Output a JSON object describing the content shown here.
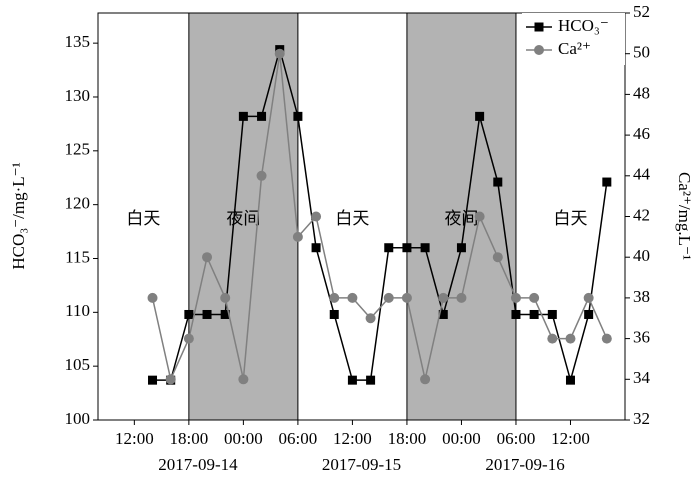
{
  "chart_data": {
    "type": "line",
    "xlim": [
      "2017-09-14T08:00",
      "2017-09-16T18:00"
    ],
    "xticks": [
      {
        "value": "2017-09-14T12:00",
        "label": "12:00"
      },
      {
        "value": "2017-09-14T18:00",
        "label": "18:00"
      },
      {
        "value": "2017-09-15T00:00",
        "label": "00:00"
      },
      {
        "value": "2017-09-15T06:00",
        "label": "06:00"
      },
      {
        "value": "2017-09-15T12:00",
        "label": "12:00"
      },
      {
        "value": "2017-09-15T18:00",
        "label": "18:00"
      },
      {
        "value": "2017-09-16T00:00",
        "label": "00:00"
      },
      {
        "value": "2017-09-16T06:00",
        "label": "06:00"
      },
      {
        "value": "2017-09-16T12:00",
        "label": "12:00"
      }
    ],
    "xdate_labels": [
      {
        "value": "2017-09-14T19:00",
        "label": "2017-09-14"
      },
      {
        "value": "2017-09-15T13:00",
        "label": "2017-09-15"
      },
      {
        "value": "2017-09-16T07:00",
        "label": "2017-09-16"
      }
    ],
    "ylabel": "HCO₃⁻/mg·L⁻¹",
    "y2label": "Ca²⁺/mg.L⁻¹",
    "ylim": [
      100,
      137.8
    ],
    "yticks": [
      100,
      105,
      110,
      115,
      120,
      125,
      130,
      135
    ],
    "y2lim": [
      32,
      52
    ],
    "y2ticks": [
      32,
      34,
      36,
      38,
      40,
      42,
      44,
      46,
      48,
      50,
      52
    ],
    "periods": [
      {
        "start": "2017-09-14T08:00",
        "end": "2017-09-14T18:00",
        "label": "白天",
        "shaded": false
      },
      {
        "start": "2017-09-14T18:00",
        "end": "2017-09-15T06:00",
        "label": "夜间",
        "shaded": true
      },
      {
        "start": "2017-09-15T06:00",
        "end": "2017-09-15T18:00",
        "label": "白天",
        "shaded": false
      },
      {
        "start": "2017-09-15T18:00",
        "end": "2017-09-16T06:00",
        "label": "夜间",
        "shaded": true
      },
      {
        "start": "2017-09-16T06:00",
        "end": "2017-09-16T18:00",
        "label": "白天",
        "shaded": false
      }
    ],
    "shade_color": "#b3b3b3",
    "legend": "upper right",
    "x": [
      "2017-09-14T14:00",
      "2017-09-14T16:00",
      "2017-09-14T18:00",
      "2017-09-14T20:00",
      "2017-09-14T22:00",
      "2017-09-15T00:00",
      "2017-09-15T02:00",
      "2017-09-15T04:00",
      "2017-09-15T06:00",
      "2017-09-15T08:00",
      "2017-09-15T10:00",
      "2017-09-15T12:00",
      "2017-09-15T14:00",
      "2017-09-15T16:00",
      "2017-09-15T18:00",
      "2017-09-15T20:00",
      "2017-09-15T22:00",
      "2017-09-16T00:00",
      "2017-09-16T02:00",
      "2017-09-16T04:00",
      "2017-09-16T06:00",
      "2017-09-16T08:00",
      "2017-09-16T10:00",
      "2017-09-16T12:00",
      "2017-09-16T14:00",
      "2017-09-16T16:00"
    ],
    "series": [
      {
        "name": "HCO₃⁻",
        "color": "#000000",
        "marker": "square",
        "values": [
          103.7,
          103.7,
          109.8,
          109.8,
          109.8,
          128.2,
          128.2,
          134.4,
          128.2,
          116,
          109.8,
          103.7,
          103.7,
          116,
          116,
          116,
          109.8,
          116,
          128.2,
          122.1,
          109.8,
          109.8,
          109.8,
          103.7,
          109.8,
          122.1
        ]
      },
      {
        "name": "Ca²⁺",
        "color": "#808080",
        "marker": "circle",
        "axis": "y2",
        "values": [
          38,
          34,
          36,
          40,
          38,
          34,
          44,
          50,
          41,
          42,
          38,
          38,
          37,
          38,
          38,
          34,
          38,
          38,
          42,
          40,
          38,
          38,
          36,
          36,
          38,
          36
        ]
      }
    ]
  }
}
